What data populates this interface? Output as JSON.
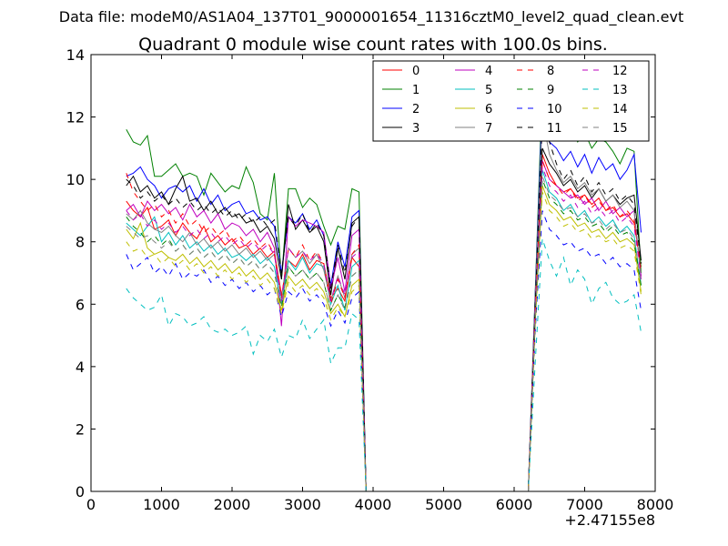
{
  "chart_data": {
    "type": "line",
    "supertitle": "Data file: modeM0/AS1A04_137T01_9000001654_11316cztM0_level2_quad_clean.evt",
    "title": "Quadrant 0 module wise count rates with 100.0s bins.",
    "xlabel": "",
    "ylabel": "",
    "x_offset_label": "+2.47155e8",
    "xlim": [
      0,
      8000
    ],
    "ylim": [
      0,
      14
    ],
    "x_ticks": [
      0,
      1000,
      2000,
      3000,
      4000,
      5000,
      6000,
      7000,
      8000
    ],
    "x_tick_labels": [
      "0",
      "1000",
      "2000",
      "3000",
      "4000",
      "5000",
      "6000",
      "7000",
      "8000"
    ],
    "y_ticks": [
      0,
      2,
      4,
      6,
      8,
      10,
      12,
      14
    ],
    "y_tick_labels": [
      "0",
      "2",
      "4",
      "6",
      "8",
      "10",
      "12",
      "14"
    ],
    "grid": false,
    "legend": {
      "placement": "top-right",
      "columns": 4
    },
    "x": [
      500,
      600,
      700,
      800,
      900,
      1000,
      1100,
      1200,
      1300,
      1400,
      1500,
      1600,
      1700,
      1800,
      1900,
      2000,
      2100,
      2200,
      2300,
      2400,
      2500,
      2600,
      2700,
      2800,
      2900,
      3000,
      3100,
      3200,
      3300,
      3400,
      3500,
      3600,
      3700,
      3800,
      3900,
      4000,
      6200,
      6300,
      6400,
      6500,
      6600,
      6700,
      6800,
      6900,
      7000,
      7100,
      7200,
      7300,
      7400,
      7500,
      7600,
      7700,
      7800
    ],
    "series": [
      {
        "name": "0",
        "color": "#ff0000",
        "dash": "solid",
        "values": [
          9.3,
          9.0,
          8.8,
          9.1,
          8.4,
          8.5,
          8.7,
          8.2,
          8.6,
          8.3,
          8.1,
          8.5,
          8.0,
          8.2,
          7.9,
          8.1,
          7.8,
          7.9,
          7.6,
          7.8,
          7.5,
          7.7,
          6.3,
          7.4,
          7.2,
          7.6,
          7.1,
          7.4,
          7.3,
          6.2,
          6.5,
          6.1,
          7.5,
          7.2,
          0.0,
          0.0,
          0.0,
          6.0,
          10.8,
          10.2,
          9.8,
          9.6,
          9.7,
          9.4,
          9.5,
          9.2,
          9.4,
          9.0,
          9.1,
          8.8,
          8.9,
          8.6,
          7.2
        ]
      },
      {
        "name": "1",
        "color": "#008000",
        "dash": "solid",
        "values": [
          11.6,
          11.2,
          11.1,
          11.4,
          10.1,
          10.1,
          10.3,
          10.5,
          10.1,
          10.2,
          10.1,
          9.5,
          10.2,
          9.9,
          9.6,
          9.8,
          9.7,
          10.4,
          9.9,
          8.9,
          8.7,
          10.2,
          6.8,
          9.7,
          9.7,
          9.1,
          9.4,
          9.2,
          8.5,
          7.9,
          8.5,
          8.4,
          9.7,
          9.6,
          0.0,
          0.0,
          0.0,
          6.5,
          13.0,
          13.0,
          11.8,
          11.4,
          11.6,
          11.2,
          11.5,
          11.0,
          11.3,
          11.2,
          10.9,
          10.5,
          11.0,
          10.9,
          7.0
        ]
      },
      {
        "name": "2",
        "color": "#0000ff",
        "dash": "solid",
        "values": [
          10.1,
          10.2,
          10.4,
          10.0,
          9.8,
          9.4,
          9.7,
          9.8,
          9.6,
          9.8,
          9.3,
          9.7,
          9.2,
          9.5,
          9.0,
          9.2,
          9.3,
          8.9,
          9.0,
          8.7,
          8.8,
          8.5,
          7.0,
          8.8,
          8.6,
          8.9,
          8.4,
          8.7,
          8.2,
          6.6,
          8.0,
          7.2,
          8.8,
          9.0,
          0.0,
          0.0,
          0.0,
          6.4,
          12.5,
          11.2,
          11.0,
          10.6,
          10.9,
          10.4,
          10.8,
          10.2,
          10.7,
          10.3,
          10.5,
          10.0,
          10.3,
          10.8,
          8.3
        ]
      },
      {
        "name": "3",
        "color": "#000000",
        "dash": "solid",
        "values": [
          9.8,
          10.1,
          9.6,
          9.8,
          9.4,
          9.6,
          9.2,
          9.7,
          10.1,
          9.3,
          9.4,
          9.0,
          9.3,
          8.9,
          9.1,
          8.8,
          8.9,
          8.6,
          8.7,
          8.3,
          8.5,
          8.1,
          6.8,
          9.2,
          8.4,
          8.7,
          8.3,
          8.5,
          8.0,
          6.3,
          7.8,
          6.8,
          8.6,
          8.8,
          0.0,
          0.0,
          0.0,
          6.2,
          11.0,
          10.5,
          10.2,
          9.8,
          10.0,
          9.6,
          9.8,
          9.4,
          9.7,
          9.3,
          9.5,
          9.2,
          9.4,
          9.5,
          7.4
        ]
      },
      {
        "name": "4",
        "color": "#bf00bf",
        "dash": "solid",
        "values": [
          9.0,
          9.2,
          8.8,
          9.3,
          9.0,
          9.2,
          8.9,
          9.1,
          8.7,
          9.2,
          8.8,
          9.0,
          8.6,
          8.9,
          8.4,
          8.6,
          8.5,
          8.2,
          8.4,
          8.0,
          8.3,
          7.8,
          5.3,
          8.8,
          8.5,
          8.7,
          8.6,
          8.5,
          8.3,
          6.5,
          7.5,
          6.4,
          8.2,
          8.4,
          0.0,
          0.0,
          0.0,
          6.0,
          10.6,
          10.0,
          9.8,
          9.6,
          9.4,
          9.5,
          9.2,
          9.4,
          9.0,
          9.3,
          8.9,
          9.1,
          8.8,
          9.0,
          6.8
        ]
      },
      {
        "name": "5",
        "color": "#00bfbf",
        "dash": "solid",
        "values": [
          8.6,
          8.4,
          8.2,
          8.5,
          8.8,
          8.0,
          8.3,
          7.9,
          8.2,
          7.8,
          8.0,
          7.7,
          7.9,
          7.6,
          7.8,
          7.5,
          7.6,
          7.4,
          7.6,
          7.3,
          7.5,
          7.2,
          6.0,
          7.4,
          7.1,
          7.5,
          7.0,
          7.3,
          7.2,
          6.0,
          6.6,
          5.8,
          7.2,
          7.4,
          0.0,
          0.0,
          0.0,
          5.8,
          10.3,
          9.6,
          9.4,
          9.0,
          9.2,
          8.8,
          9.0,
          8.6,
          8.8,
          8.5,
          8.7,
          8.3,
          8.5,
          8.2,
          6.6
        ]
      },
      {
        "name": "6",
        "color": "#bfbf00",
        "dash": "solid",
        "values": [
          8.4,
          8.1,
          8.6,
          7.8,
          7.6,
          7.7,
          7.5,
          7.4,
          7.6,
          7.3,
          7.5,
          7.2,
          7.4,
          7.1,
          7.3,
          7.0,
          7.2,
          6.9,
          7.1,
          6.8,
          7.0,
          6.7,
          5.8,
          6.9,
          6.6,
          6.8,
          6.5,
          6.7,
          6.4,
          5.7,
          6.0,
          5.6,
          6.6,
          6.8,
          0.0,
          0.0,
          0.0,
          5.5,
          9.8,
          9.2,
          9.0,
          8.7,
          8.8,
          8.5,
          8.6,
          8.3,
          8.4,
          8.1,
          8.3,
          8.0,
          8.1,
          7.9,
          6.4
        ]
      },
      {
        "name": "7",
        "color": "#808080",
        "dash": "solid",
        "values": [
          8.9,
          8.7,
          9.0,
          8.6,
          8.4,
          8.3,
          8.5,
          8.2,
          8.0,
          8.3,
          7.9,
          8.1,
          7.8,
          8.0,
          7.7,
          7.9,
          7.6,
          7.8,
          7.5,
          7.7,
          7.4,
          7.6,
          6.2,
          7.8,
          7.5,
          7.7,
          7.3,
          7.6,
          7.1,
          6.1,
          6.9,
          6.2,
          7.6,
          7.8,
          0.0,
          0.0,
          0.0,
          6.3,
          12.0,
          10.8,
          10.3,
          9.9,
          10.1,
          9.7,
          9.9,
          9.5,
          9.7,
          9.3,
          9.5,
          9.1,
          9.3,
          9.0,
          6.9
        ]
      },
      {
        "name": "8",
        "color": "#ff0000",
        "dash": "dashed",
        "values": [
          10.2,
          9.6,
          9.3,
          9.0,
          9.2,
          8.8,
          9.0,
          8.6,
          8.9,
          8.5,
          8.7,
          8.3,
          8.5,
          8.2,
          8.4,
          8.0,
          8.2,
          7.9,
          8.1,
          7.8,
          8.0,
          7.6,
          6.2,
          7.8,
          7.5,
          7.9,
          7.4,
          7.7,
          7.3,
          6.0,
          6.8,
          6.2,
          7.6,
          7.9,
          0.0,
          0.0,
          0.0,
          6.0,
          10.6,
          10.0,
          9.8,
          9.5,
          9.7,
          9.3,
          9.5,
          9.1,
          9.3,
          9.0,
          9.2,
          8.8,
          9.0,
          8.7,
          7.0
        ]
      },
      {
        "name": "9",
        "color": "#008000",
        "dash": "dashed",
        "values": [
          8.8,
          8.5,
          8.3,
          8.0,
          8.2,
          7.9,
          8.1,
          7.7,
          7.9,
          7.6,
          7.8,
          7.5,
          7.7,
          7.4,
          7.6,
          7.3,
          7.5,
          7.2,
          7.4,
          7.1,
          7.3,
          7.0,
          5.9,
          7.2,
          6.9,
          7.1,
          6.8,
          7.0,
          6.7,
          5.8,
          6.3,
          5.9,
          6.9,
          7.1,
          0.0,
          0.0,
          0.0,
          5.6,
          10.0,
          9.4,
          9.2,
          8.9,
          9.0,
          8.7,
          8.8,
          8.5,
          8.6,
          8.3,
          8.5,
          8.2,
          8.3,
          8.0,
          6.6
        ]
      },
      {
        "name": "10",
        "color": "#0000ff",
        "dash": "dashed",
        "values": [
          7.6,
          7.1,
          7.3,
          7.5,
          7.0,
          7.2,
          6.9,
          7.3,
          6.8,
          7.0,
          6.9,
          7.1,
          6.7,
          6.9,
          6.6,
          6.8,
          6.5,
          6.7,
          6.4,
          6.6,
          6.3,
          6.5,
          5.6,
          6.4,
          6.2,
          6.5,
          6.1,
          6.3,
          6.0,
          5.3,
          5.8,
          5.4,
          6.2,
          6.4,
          0.0,
          0.0,
          0.0,
          5.2,
          9.0,
          8.4,
          8.2,
          7.9,
          8.0,
          7.7,
          7.8,
          7.5,
          7.6,
          7.3,
          7.5,
          7.2,
          7.3,
          7.1,
          5.8
        ]
      },
      {
        "name": "11",
        "color": "#000000",
        "dash": "dashed",
        "values": [
          10.0,
          9.8,
          9.4,
          9.6,
          9.3,
          9.5,
          9.2,
          9.4,
          9.1,
          9.3,
          9.0,
          9.2,
          8.9,
          9.1,
          8.8,
          9.0,
          8.7,
          8.9,
          8.6,
          8.8,
          8.5,
          8.7,
          7.0,
          8.8,
          8.5,
          8.9,
          8.3,
          8.6,
          8.2,
          6.5,
          7.9,
          7.0,
          8.5,
          8.8,
          0.0,
          0.0,
          0.0,
          6.1,
          11.9,
          11.2,
          10.5,
          10.0,
          10.3,
          9.8,
          10.1,
          9.6,
          9.9,
          9.5,
          9.7,
          9.3,
          9.5,
          9.2,
          7.3
        ]
      },
      {
        "name": "12",
        "color": "#bf00bf",
        "dash": "dashed",
        "values": [
          9.0,
          8.7,
          8.9,
          8.5,
          8.7,
          8.4,
          8.6,
          8.3,
          8.5,
          8.2,
          8.4,
          8.1,
          8.3,
          8.0,
          8.2,
          7.9,
          8.1,
          7.8,
          8.0,
          7.7,
          7.9,
          7.6,
          6.1,
          7.8,
          7.5,
          7.7,
          7.4,
          7.6,
          7.3,
          6.1,
          6.9,
          6.3,
          7.5,
          7.7,
          0.0,
          0.0,
          0.0,
          5.9,
          10.4,
          9.8,
          9.6,
          9.3,
          9.5,
          9.1,
          9.3,
          8.9,
          9.1,
          8.8,
          9.0,
          8.6,
          8.8,
          8.5,
          6.9
        ]
      },
      {
        "name": "13",
        "color": "#00bfbf",
        "dash": "dashed",
        "values": [
          6.5,
          6.2,
          6.0,
          5.8,
          5.9,
          6.3,
          5.3,
          5.7,
          5.6,
          5.3,
          5.4,
          5.6,
          5.2,
          5.1,
          5.2,
          5.0,
          5.1,
          5.3,
          4.4,
          5.0,
          4.8,
          5.2,
          4.3,
          5.0,
          4.9,
          5.5,
          4.9,
          5.2,
          5.5,
          4.1,
          4.6,
          4.6,
          5.7,
          5.5,
          0.0,
          0.0,
          0.0,
          4.2,
          8.1,
          7.4,
          6.9,
          7.5,
          6.6,
          7.1,
          6.8,
          6.0,
          6.5,
          6.7,
          6.2,
          6.0,
          6.1,
          6.3,
          5.1
        ]
      },
      {
        "name": "14",
        "color": "#bfbf00",
        "dash": "dashed",
        "values": [
          8.0,
          7.7,
          7.8,
          7.5,
          7.6,
          7.3,
          7.5,
          7.2,
          7.4,
          7.1,
          7.3,
          7.0,
          7.2,
          6.9,
          7.1,
          6.8,
          7.0,
          6.7,
          6.9,
          6.6,
          6.8,
          6.5,
          5.7,
          6.7,
          6.4,
          6.6,
          6.3,
          6.5,
          6.2,
          5.5,
          5.9,
          5.6,
          6.4,
          6.6,
          0.0,
          0.0,
          0.0,
          5.4,
          9.6,
          9.0,
          8.8,
          8.5,
          8.6,
          8.3,
          8.4,
          8.1,
          8.2,
          8.0,
          8.1,
          7.8,
          7.9,
          7.7,
          6.3
        ]
      },
      {
        "name": "15",
        "color": "#808080",
        "dash": "dashed",
        "values": [
          8.5,
          8.3,
          8.1,
          8.2,
          8.0,
          7.8,
          8.0,
          7.7,
          7.9,
          7.6,
          7.8,
          7.5,
          7.7,
          7.4,
          7.6,
          7.3,
          7.5,
          7.2,
          7.4,
          7.1,
          7.3,
          7.0,
          6.0,
          7.2,
          6.9,
          7.1,
          6.8,
          7.0,
          6.7,
          5.8,
          6.3,
          5.8,
          6.9,
          7.1,
          0.0,
          0.0,
          0.0,
          5.7,
          10.1,
          9.5,
          9.3,
          9.0,
          9.1,
          8.8,
          8.9,
          8.6,
          8.7,
          8.4,
          8.6,
          8.3,
          8.4,
          8.1,
          6.7
        ]
      }
    ]
  }
}
